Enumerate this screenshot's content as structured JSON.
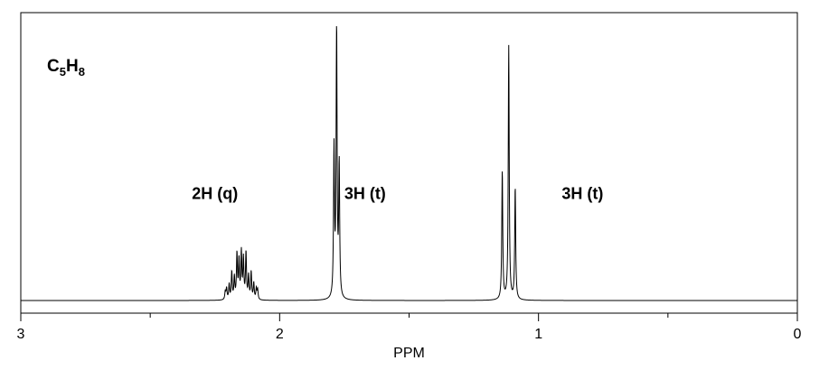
{
  "chart_data": {
    "type": "line",
    "title": "",
    "xlabel": "PPM",
    "ylabel": "",
    "xlim": [
      3,
      0
    ],
    "ylim": [
      0,
      1.0
    ],
    "x_reversed": true,
    "grid": false,
    "legend": "none",
    "x_ticks": [
      3,
      2,
      1,
      0
    ],
    "x_tick_labels": [
      "3",
      "2",
      "1",
      "0"
    ],
    "x_minor_ticks": [
      2.5,
      1.5,
      0.5
    ],
    "formula": {
      "main_1": "C",
      "sub_1": "5",
      "main_2": "H",
      "sub_2": "8"
    },
    "annotations": [
      {
        "text": "2H (q)",
        "x": 2.25,
        "y": 0.37
      },
      {
        "text": "3H (t)",
        "x": 1.67,
        "y": 0.37
      },
      {
        "text": "3H (t)",
        "x": 0.83,
        "y": 0.37
      }
    ],
    "peaks": [
      {
        "ppm": 2.21,
        "height": 0.03
      },
      {
        "ppm": 2.205,
        "height": 0.04
      },
      {
        "ppm": 2.195,
        "height": 0.055
      },
      {
        "ppm": 2.185,
        "height": 0.1
      },
      {
        "ppm": 2.175,
        "height": 0.08
      },
      {
        "ppm": 2.165,
        "height": 0.165
      },
      {
        "ppm": 2.157,
        "height": 0.14
      },
      {
        "ppm": 2.148,
        "height": 0.17
      },
      {
        "ppm": 2.14,
        "height": 0.145
      },
      {
        "ppm": 2.13,
        "height": 0.17
      },
      {
        "ppm": 2.12,
        "height": 0.085
      },
      {
        "ppm": 2.11,
        "height": 0.1
      },
      {
        "ppm": 2.1,
        "height": 0.06
      },
      {
        "ppm": 2.09,
        "height": 0.04
      },
      {
        "ppm": 2.085,
        "height": 0.035
      },
      {
        "ppm": 1.79,
        "height": 0.54
      },
      {
        "ppm": 1.78,
        "height": 1.0
      },
      {
        "ppm": 1.77,
        "height": 0.48
      },
      {
        "ppm": 1.14,
        "height": 0.47
      },
      {
        "ppm": 1.115,
        "height": 0.925
      },
      {
        "ppm": 1.09,
        "height": 0.41
      }
    ]
  }
}
